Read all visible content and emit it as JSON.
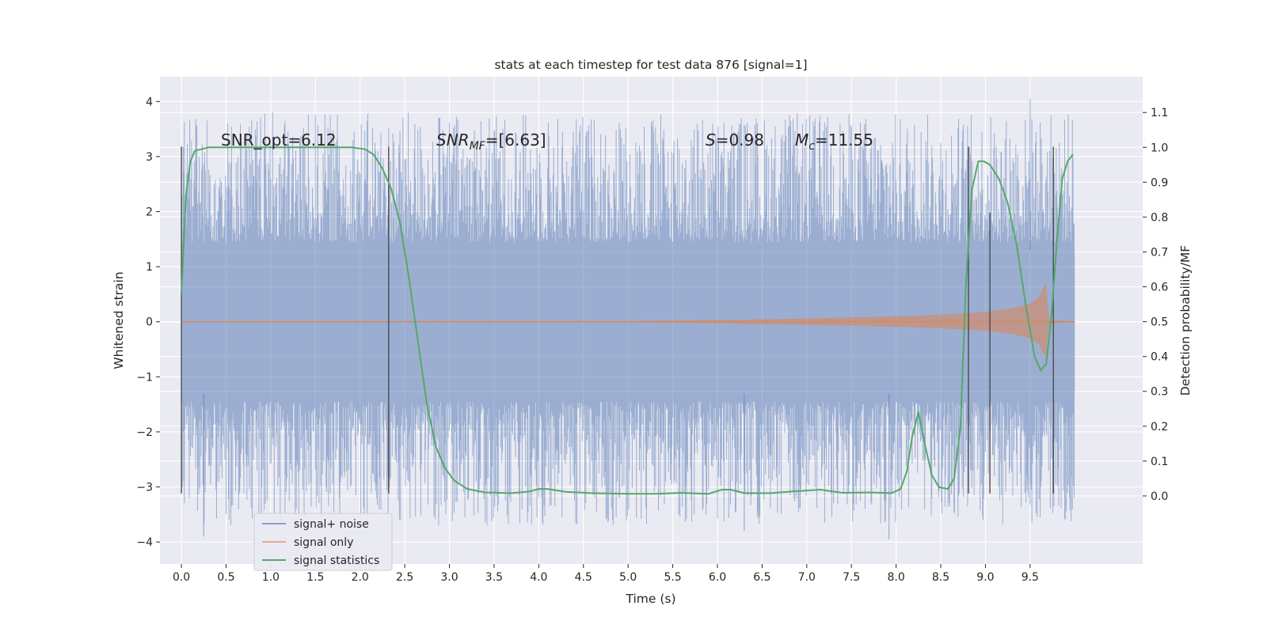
{
  "chart_data": {
    "type": "line",
    "title": "stats at each timestep for test data 876 [signal=1]",
    "xlabel": "Time (s)",
    "ylabel_left": "Whitened strain",
    "ylabel_right": "Detection probability/MF",
    "x_ticks": [
      "0.0",
      "0.5",
      "1.0",
      "1.5",
      "2.0",
      "2.5",
      "3.0",
      "3.5",
      "4.0",
      "4.5",
      "5.0",
      "5.5",
      "6.0",
      "6.5",
      "7.0",
      "7.5",
      "8.0",
      "8.5",
      "9.0",
      "9.5"
    ],
    "y_left_ticks": [
      "4",
      "3",
      "2",
      "1",
      "0",
      "−1",
      "−2",
      "−3",
      "−4"
    ],
    "y_right_ticks": [
      "1.1",
      "1.0",
      "0.9",
      "0.8",
      "0.7",
      "0.6",
      "0.5",
      "0.4",
      "0.3",
      "0.2",
      "0.1",
      "0.0"
    ],
    "xlim": [
      -0.24,
      10.76
    ],
    "ylim_left": [
      -4.4,
      4.45
    ],
    "ylim_right": [
      -0.1953,
      1.2026
    ],
    "grid": true,
    "legend_position": "lower-left",
    "annotations": {
      "snr_opt": "SNR_opt=6.12",
      "snr_mf_base": "SNR",
      "snr_mf_sub": "MF",
      "snr_mf_value": "=[6.63]",
      "s_symbol": "S",
      "s_value": "=0.98",
      "mc_symbol": "M",
      "mc_sub": "c",
      "mc_value": "=11.55"
    },
    "series": [
      {
        "name": "signal+ noise",
        "color": "#4c72b0",
        "alpha": 0.5,
        "x_range": [
          0.0,
          10.0
        ],
        "envelope_core": 1.3,
        "envelope_peak_max": 4.05,
        "envelope_peak_min": -3.95
      },
      {
        "name": "signal only",
        "color": "#dd8452",
        "alpha": 0.5,
        "x_range": [
          0.0,
          10.0
        ],
        "envelope": [
          [
            0,
            0.01
          ],
          [
            5,
            0.015
          ],
          [
            6,
            0.03
          ],
          [
            7,
            0.06
          ],
          [
            8,
            0.1
          ],
          [
            8.5,
            0.13
          ],
          [
            9,
            0.18
          ],
          [
            9.3,
            0.24
          ],
          [
            9.5,
            0.33
          ],
          [
            9.6,
            0.45
          ],
          [
            9.65,
            0.62
          ],
          [
            9.68,
            0.7
          ],
          [
            9.7,
            0.2
          ],
          [
            9.72,
            0.03
          ],
          [
            10,
            0.01
          ]
        ]
      },
      {
        "name": "signal statistics",
        "color": "#55a868",
        "alpha": 1.0,
        "points": [
          [
            0,
            0.58
          ],
          [
            0.05,
            0.86
          ],
          [
            0.1,
            0.96
          ],
          [
            0.15,
            0.99
          ],
          [
            0.3,
            1.0
          ],
          [
            1,
            1.0
          ],
          [
            1.9,
            1.0
          ],
          [
            2.05,
            0.995
          ],
          [
            2.15,
            0.98
          ],
          [
            2.25,
            0.94
          ],
          [
            2.35,
            0.88
          ],
          [
            2.45,
            0.78
          ],
          [
            2.55,
            0.62
          ],
          [
            2.65,
            0.44
          ],
          [
            2.75,
            0.26
          ],
          [
            2.85,
            0.14
          ],
          [
            2.95,
            0.08
          ],
          [
            3.05,
            0.045
          ],
          [
            3.2,
            0.02
          ],
          [
            3.4,
            0.01
          ],
          [
            3.7,
            0.008
          ],
          [
            3.9,
            0.013
          ],
          [
            4.0,
            0.02
          ],
          [
            4.1,
            0.02
          ],
          [
            4.3,
            0.012
          ],
          [
            4.6,
            0.008
          ],
          [
            5.0,
            0.006
          ],
          [
            5.3,
            0.006
          ],
          [
            5.6,
            0.009
          ],
          [
            5.9,
            0.006
          ],
          [
            6.05,
            0.018
          ],
          [
            6.15,
            0.018
          ],
          [
            6.3,
            0.008
          ],
          [
            6.6,
            0.008
          ],
          [
            6.9,
            0.014
          ],
          [
            7.15,
            0.018
          ],
          [
            7.4,
            0.009
          ],
          [
            7.7,
            0.01
          ],
          [
            7.95,
            0.008
          ],
          [
            8.05,
            0.02
          ],
          [
            8.12,
            0.07
          ],
          [
            8.18,
            0.17
          ],
          [
            8.25,
            0.24
          ],
          [
            8.32,
            0.15
          ],
          [
            8.4,
            0.06
          ],
          [
            8.48,
            0.025
          ],
          [
            8.58,
            0.02
          ],
          [
            8.65,
            0.05
          ],
          [
            8.72,
            0.2
          ],
          [
            8.78,
            0.6
          ],
          [
            8.85,
            0.88
          ],
          [
            8.92,
            0.96
          ],
          [
            8.98,
            0.96
          ],
          [
            9.05,
            0.95
          ],
          [
            9.15,
            0.91
          ],
          [
            9.25,
            0.84
          ],
          [
            9.35,
            0.72
          ],
          [
            9.45,
            0.55
          ],
          [
            9.55,
            0.4
          ],
          [
            9.62,
            0.36
          ],
          [
            9.68,
            0.38
          ],
          [
            9.74,
            0.52
          ],
          [
            9.8,
            0.73
          ],
          [
            9.86,
            0.91
          ],
          [
            9.92,
            0.96
          ],
          [
            9.98,
            0.98
          ]
        ]
      }
    ],
    "vertical_markers": [
      {
        "x": 0.0,
        "y0": -3.12,
        "y1": 3.18
      },
      {
        "x": 2.32,
        "y0": -3.12,
        "y1": 3.18
      },
      {
        "x": 8.81,
        "y0": -3.12,
        "y1": 3.18
      },
      {
        "x": 9.05,
        "y0": -3.12,
        "y1": 1.98
      },
      {
        "x": 9.76,
        "y0": -3.12,
        "y1": 3.18
      }
    ]
  }
}
